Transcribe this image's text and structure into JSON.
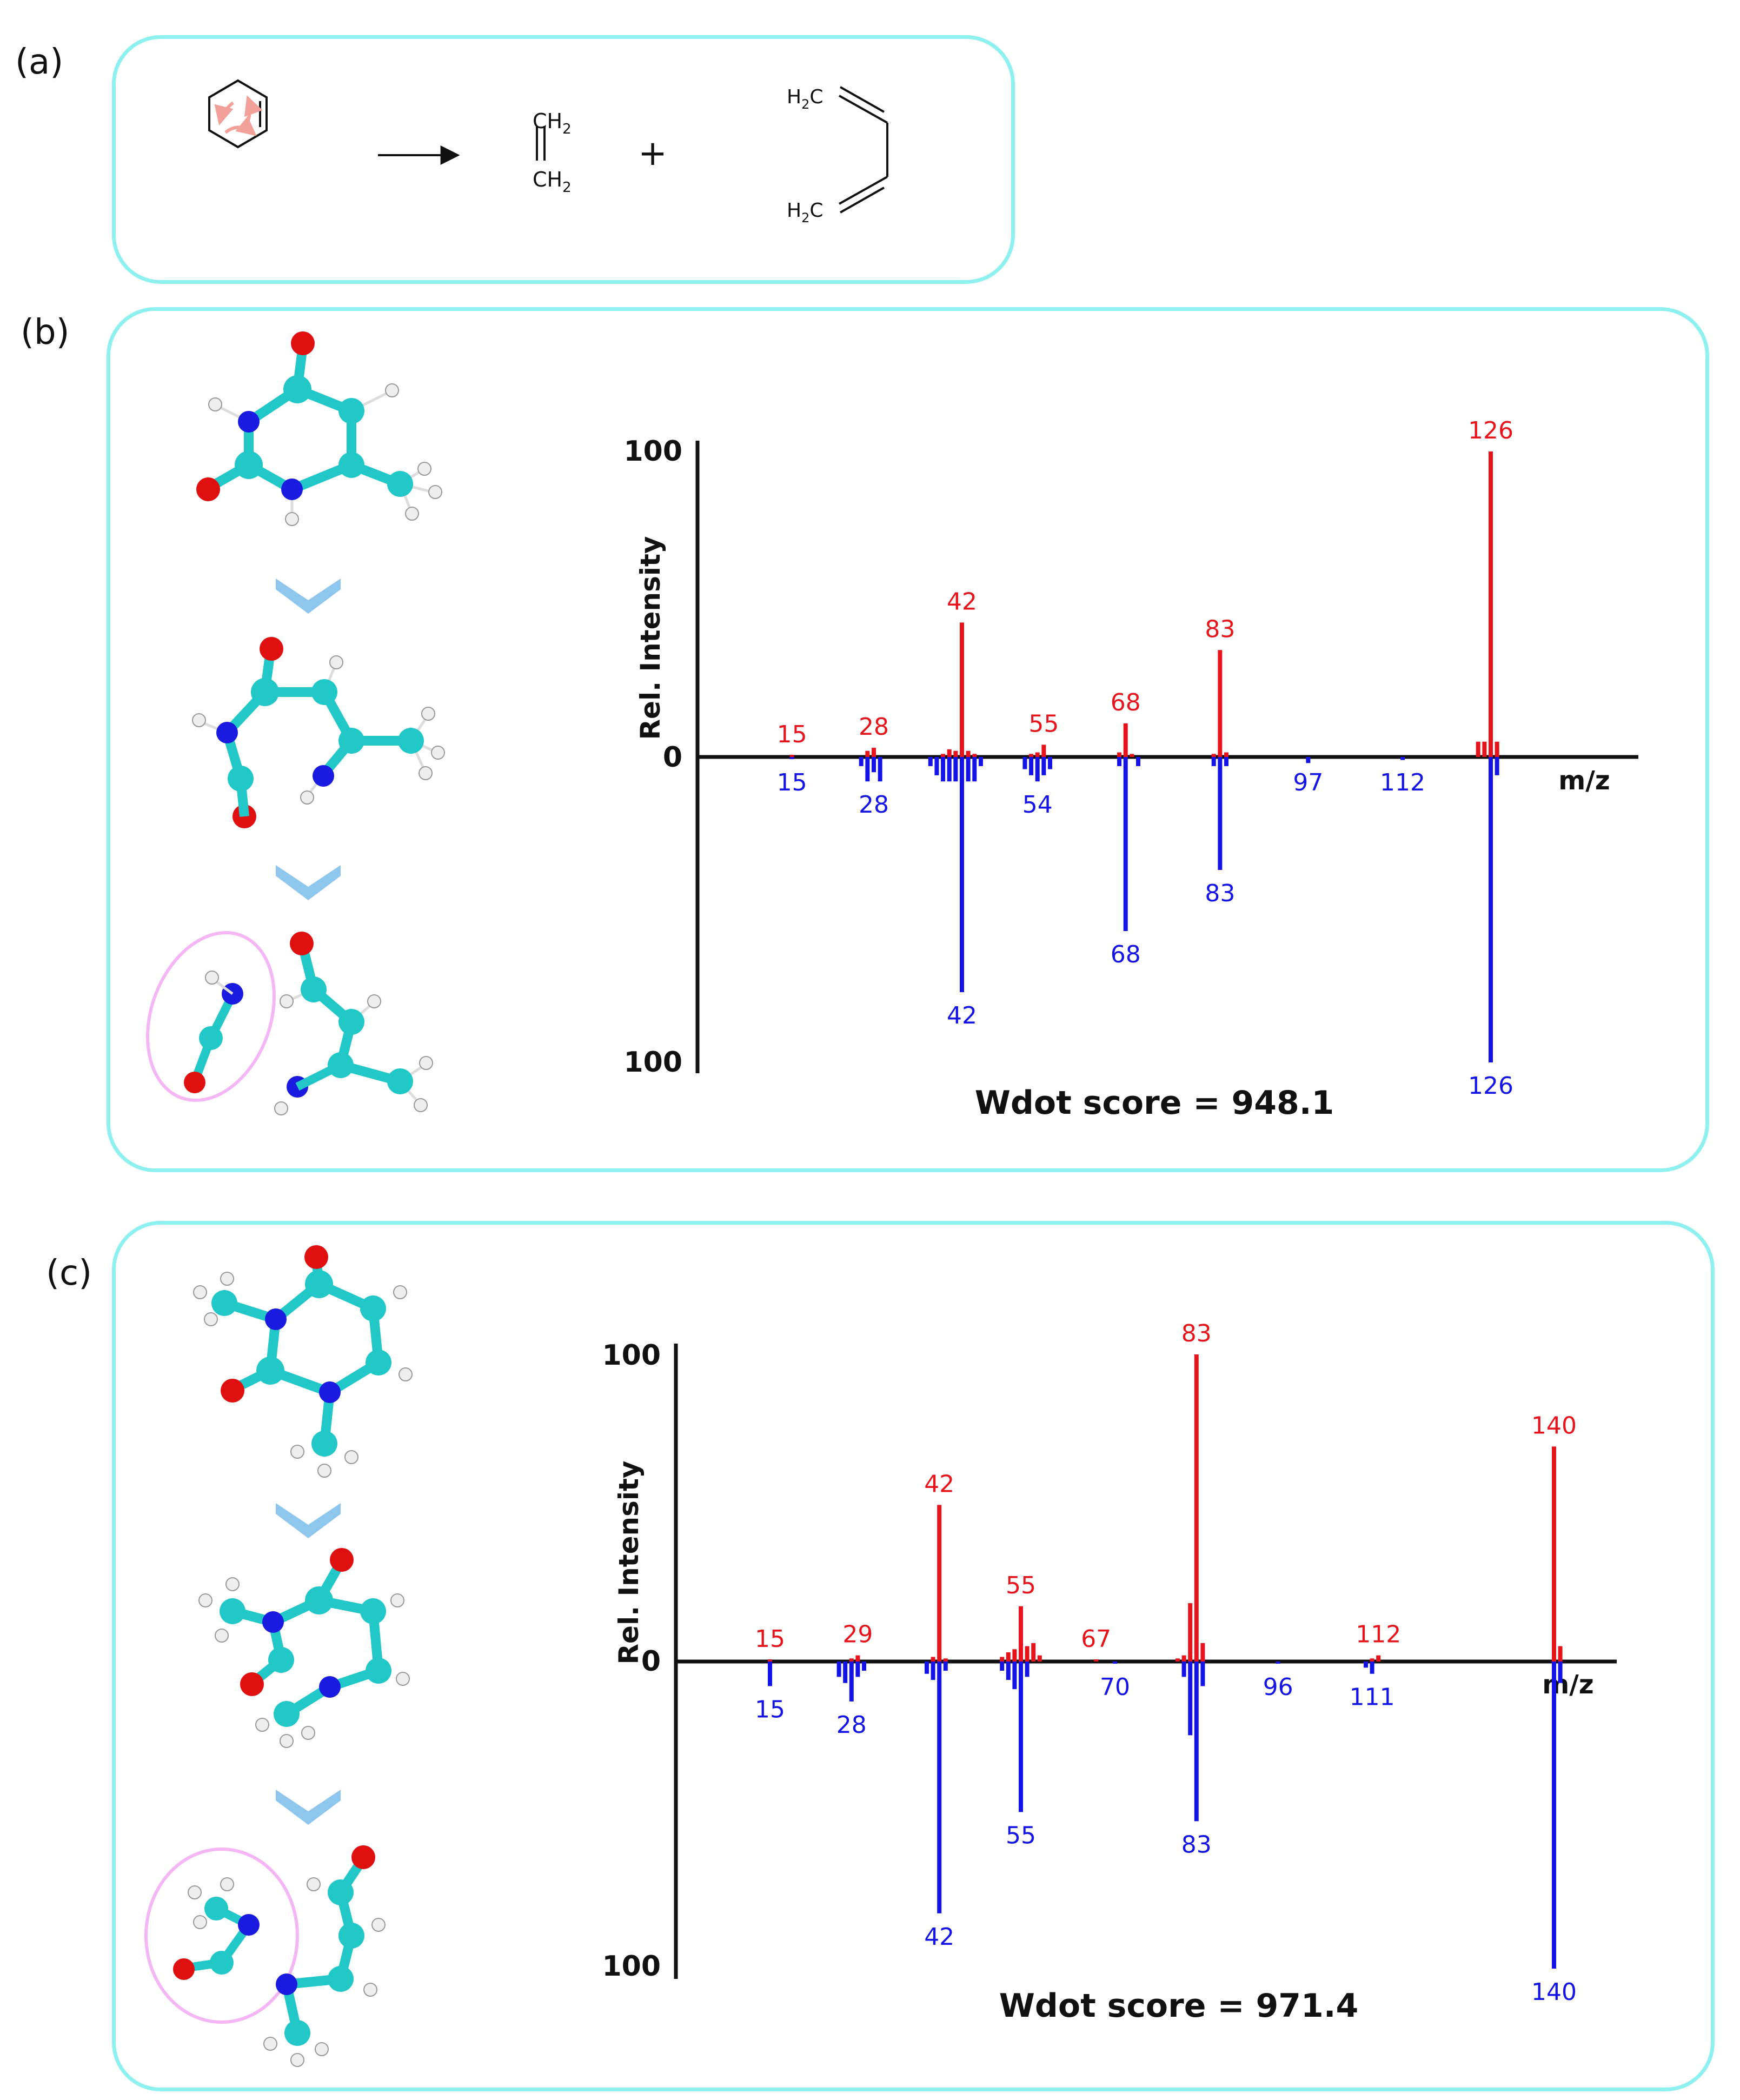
{
  "labels": {
    "a": "(a)",
    "b": "(b)",
    "c": "(c)"
  },
  "panel_a": {
    "ethylene_top": "CH",
    "ethylene_bottom": "CH",
    "subscript": "2",
    "plus": "+",
    "diene_top": "H",
    "diene_top_c": "C",
    "diene_bottom": "H",
    "diene_bottom_c": "C",
    "diene_sub": "2"
  },
  "colors": {
    "predicted": "#e8141b",
    "reference": "#1414e8",
    "panel_border": "#8ff0f0",
    "carbon": "#22c8c8",
    "oxygen": "#e01010",
    "nitrogen": "#1a1ae0"
  },
  "chart_data": [
    {
      "type": "bar",
      "title": "",
      "xlabel": "m/z",
      "ylabel": "Rel. Intensity",
      "ylim": [
        0,
        100
      ],
      "yticks": [
        "100",
        "0",
        "100"
      ],
      "score": "Wdot score = 948.1",
      "xrange": [
        0,
        140
      ],
      "series": [
        {
          "name": "predicted",
          "direction": "up",
          "peaks": [
            [
              15,
              0.5
            ],
            [
              27,
              2
            ],
            [
              28,
              3
            ],
            [
              39,
              1
            ],
            [
              40,
              2.5
            ],
            [
              41,
              2
            ],
            [
              42,
              44
            ],
            [
              43,
              2
            ],
            [
              44,
              1
            ],
            [
              53,
              1
            ],
            [
              54,
              1.5
            ],
            [
              55,
              4
            ],
            [
              67,
              1.5
            ],
            [
              68,
              11
            ],
            [
              69,
              1
            ],
            [
              82,
              1
            ],
            [
              83,
              35
            ],
            [
              84,
              1.5
            ],
            [
              124,
              5
            ],
            [
              125,
              5
            ],
            [
              126,
              100
            ],
            [
              127,
              5
            ]
          ]
        },
        {
          "name": "reference",
          "direction": "down",
          "peaks": [
            [
              15,
              0.5
            ],
            [
              26,
              3
            ],
            [
              27,
              8
            ],
            [
              28,
              5
            ],
            [
              29,
              8
            ],
            [
              37,
              3
            ],
            [
              38,
              6
            ],
            [
              39,
              8
            ],
            [
              40,
              8
            ],
            [
              41,
              8
            ],
            [
              42,
              77
            ],
            [
              43,
              8
            ],
            [
              44,
              8
            ],
            [
              45,
              3
            ],
            [
              52,
              4
            ],
            [
              53,
              6
            ],
            [
              54,
              8
            ],
            [
              55,
              6
            ],
            [
              56,
              4
            ],
            [
              67,
              3
            ],
            [
              68,
              57
            ],
            [
              70,
              3
            ],
            [
              82,
              3
            ],
            [
              83,
              37
            ],
            [
              84,
              3
            ],
            [
              97,
              2
            ],
            [
              112,
              1
            ],
            [
              126,
              100
            ],
            [
              127,
              6
            ]
          ]
        }
      ],
      "annotations_up": [
        {
          "x": 15,
          "text": "15"
        },
        {
          "x": 28,
          "text": "28"
        },
        {
          "x": 42,
          "text": "42"
        },
        {
          "x": 55,
          "text": "55"
        },
        {
          "x": 68,
          "text": "68"
        },
        {
          "x": 83,
          "text": "83"
        },
        {
          "x": 126,
          "text": "126"
        }
      ],
      "annotations_down": [
        {
          "x": 15,
          "text": "15",
          "v": 0
        },
        {
          "x": 28,
          "text": "28",
          "v": 8
        },
        {
          "x": 42,
          "text": "42",
          "v": 77
        },
        {
          "x": 54,
          "text": "54",
          "v": 8
        },
        {
          "x": 68,
          "text": "68",
          "v": 57
        },
        {
          "x": 83,
          "text": "83",
          "v": 37
        },
        {
          "x": 97,
          "text": "97",
          "v": 0
        },
        {
          "x": 112,
          "text": "112",
          "v": 0
        },
        {
          "x": 126,
          "text": "126",
          "v": 100
        }
      ]
    },
    {
      "type": "bar",
      "title": "",
      "xlabel": "m/z",
      "ylabel": "Rel. Intensity",
      "ylim": [
        0,
        100
      ],
      "yticks": [
        "100",
        "0",
        "100"
      ],
      "score": "Wdot score = 971.4",
      "xrange": [
        0,
        150
      ],
      "series": [
        {
          "name": "predicted",
          "direction": "up",
          "peaks": [
            [
              15,
              0.5
            ],
            [
              28,
              1
            ],
            [
              29,
              2
            ],
            [
              41,
              1.5
            ],
            [
              42,
              51
            ],
            [
              43,
              1
            ],
            [
              52,
              1.5
            ],
            [
              53,
              3
            ],
            [
              54,
              4
            ],
            [
              55,
              18
            ],
            [
              56,
              5
            ],
            [
              57,
              6
            ],
            [
              58,
              2
            ],
            [
              67,
              0.5
            ],
            [
              80,
              1
            ],
            [
              81,
              2
            ],
            [
              82,
              19
            ],
            [
              83,
              100
            ],
            [
              84,
              6
            ],
            [
              111,
              1
            ],
            [
              112,
              2
            ],
            [
              140,
              70
            ],
            [
              141,
              5
            ]
          ]
        },
        {
          "name": "reference",
          "direction": "down",
          "peaks": [
            [
              15,
              8
            ],
            [
              26,
              5
            ],
            [
              27,
              7
            ],
            [
              28,
              13
            ],
            [
              29,
              5
            ],
            [
              30,
              3
            ],
            [
              40,
              4
            ],
            [
              41,
              6
            ],
            [
              42,
              82
            ],
            [
              43,
              3
            ],
            [
              52,
              3
            ],
            [
              53,
              6
            ],
            [
              54,
              9
            ],
            [
              55,
              49
            ],
            [
              56,
              5
            ],
            [
              70,
              0.5
            ],
            [
              81,
              5
            ],
            [
              82,
              24
            ],
            [
              83,
              52
            ],
            [
              84,
              8
            ],
            [
              96,
              0.5
            ],
            [
              110,
              2
            ],
            [
              111,
              4
            ],
            [
              140,
              100
            ],
            [
              141,
              7
            ]
          ]
        }
      ],
      "annotations_up": [
        {
          "x": 15,
          "text": "15"
        },
        {
          "x": 29,
          "text": "29"
        },
        {
          "x": 42,
          "text": "42"
        },
        {
          "x": 55,
          "text": "55"
        },
        {
          "x": 67,
          "text": "67"
        },
        {
          "x": 83,
          "text": "83"
        },
        {
          "x": 112,
          "text": "112"
        },
        {
          "x": 140,
          "text": "140"
        }
      ],
      "annotations_down": [
        {
          "x": 15,
          "text": "15",
          "v": 8
        },
        {
          "x": 28,
          "text": "28",
          "v": 13
        },
        {
          "x": 42,
          "text": "42",
          "v": 82
        },
        {
          "x": 55,
          "text": "55",
          "v": 49
        },
        {
          "x": 70,
          "text": "70",
          "v": 0
        },
        {
          "x": 83,
          "text": "83",
          "v": 52
        },
        {
          "x": 96,
          "text": "96",
          "v": 0
        },
        {
          "x": 111,
          "text": "111",
          "v": 4
        },
        {
          "x": 140,
          "text": "140",
          "v": 100
        }
      ]
    }
  ]
}
